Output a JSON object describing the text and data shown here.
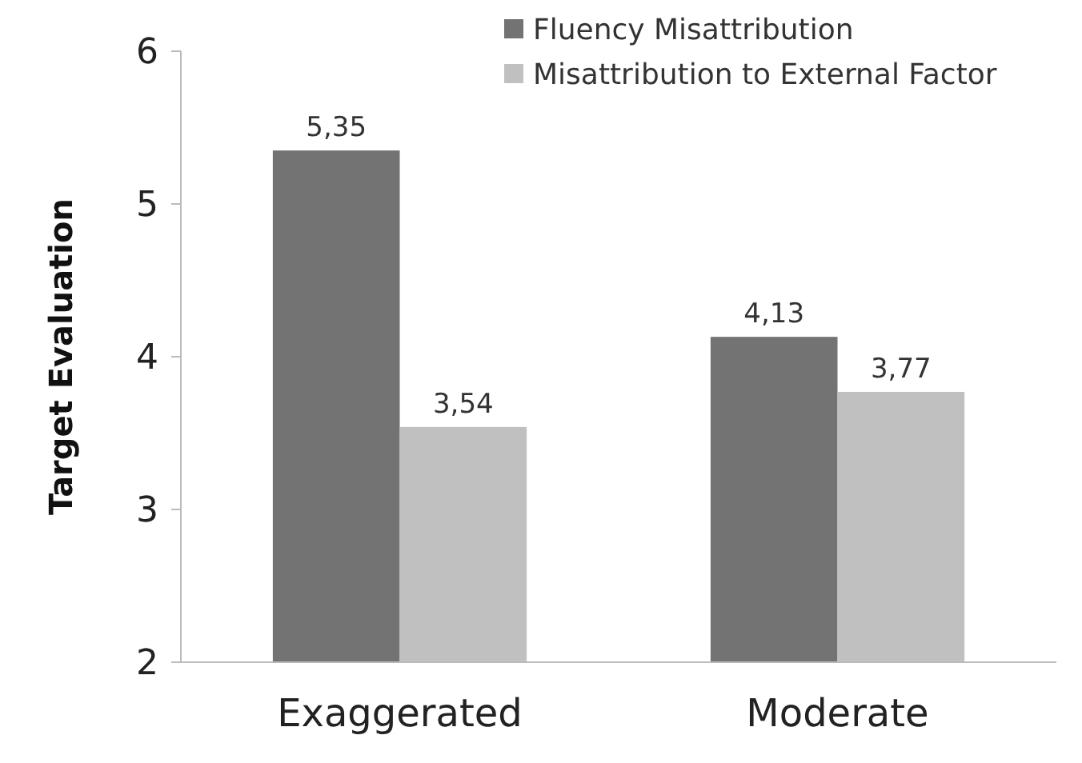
{
  "chart_data": {
    "type": "bar",
    "ylabel": "Target Evaluation",
    "categories": [
      "Exaggerated",
      "Moderate"
    ],
    "series": [
      {
        "name": "Fluency Misattribution",
        "color": "#737373",
        "values": [
          5.35,
          4.13
        ],
        "value_labels": [
          "5,35",
          "4,13"
        ]
      },
      {
        "name": "Misattribution to External Factor",
        "color": "#c0c0c0",
        "values": [
          3.54,
          3.77
        ],
        "value_labels": [
          "3,54",
          "3,77"
        ]
      }
    ],
    "ylim": [
      2,
      6
    ],
    "yticks": [
      2,
      3,
      4,
      5,
      6
    ],
    "grid": false,
    "legend": "top right"
  }
}
